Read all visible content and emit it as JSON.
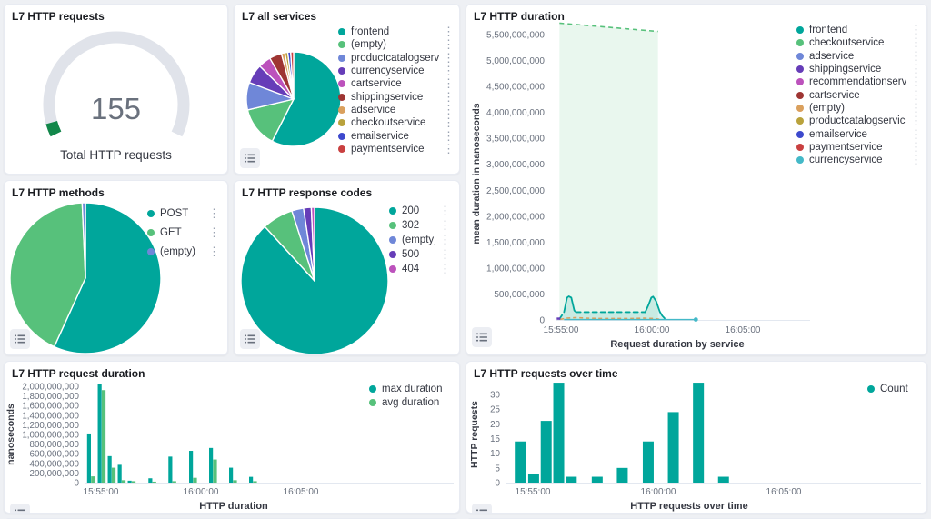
{
  "gauge": {
    "title": "L7 HTTP requests",
    "value": "155",
    "caption": "Total HTTP requests",
    "arc_color": "#12874a",
    "track_color": "#e0e3ea",
    "max_angle": 116,
    "value_sweep_deg": 10.5
  },
  "services_pie": {
    "title": "L7 all services",
    "slices": [
      {
        "label": "frontend",
        "color": "#00a69b",
        "percent": 57.5
      },
      {
        "label": "(empty)",
        "color": "#57c17b",
        "percent": 13.8
      },
      {
        "label": "productcatalogservice",
        "color": "#6f87d8",
        "percent": 9.4
      },
      {
        "label": "currencyservice",
        "color": "#663db8",
        "percent": 6.6
      },
      {
        "label": "cartservice",
        "color": "#bc52bc",
        "percent": 4.3
      },
      {
        "label": "shippingservice",
        "color": "#9e3533",
        "percent": 4.2
      },
      {
        "label": "adservice",
        "color": "#daa05d",
        "percent": 1.2
      },
      {
        "label": "checkoutservice",
        "color": "#b9a23c",
        "percent": 1.0
      },
      {
        "label": "emailservice",
        "color": "#3d49cd",
        "percent": 1.0
      },
      {
        "label": "paymentservice",
        "color": "#c94040",
        "percent": 1.0
      }
    ]
  },
  "methods_pie": {
    "title": "L7 HTTP methods",
    "slices": [
      {
        "label": "POST",
        "color": "#00a69b",
        "percent": 56.8
      },
      {
        "label": "GET",
        "color": "#57c17b",
        "percent": 42.5
      },
      {
        "label": "(empty)",
        "color": "#6f87d8",
        "percent": 0.7
      }
    ]
  },
  "codes_pie": {
    "title": "L7 HTTP response codes",
    "slices": [
      {
        "label": "200",
        "color": "#00a69b",
        "percent": 88.2
      },
      {
        "label": "302",
        "color": "#57c17b",
        "percent": 6.8
      },
      {
        "label": "(empty)",
        "color": "#6f87d8",
        "percent": 2.6
      },
      {
        "label": "500",
        "color": "#663db8",
        "percent": 1.7
      },
      {
        "label": "404",
        "color": "#bc52bc",
        "percent": 0.7
      }
    ]
  },
  "duration_chart": {
    "title": "L7 HTTP duration",
    "type": "line-area",
    "y_title": "mean duration in nanoseconds",
    "x_title": "Request duration by service",
    "y_ticks": [
      "0",
      "500,000,000",
      "1,000,000,000",
      "1,500,000,000",
      "2,000,000,000",
      "2,500,000,000",
      "3,000,000,000",
      "3,500,000,000",
      "4,000,000,000",
      "4,500,000,000",
      "5,000,000,000",
      "5,500,000,000"
    ],
    "y_tick_step": 500000000,
    "ylim": [
      0,
      5750000000
    ],
    "x_ticks": [
      "15:55:00",
      "16:00:00",
      "16:05:00"
    ],
    "legend": [
      {
        "label": "frontend",
        "color": "#00a69b"
      },
      {
        "label": "checkoutservice",
        "color": "#57c17b"
      },
      {
        "label": "adservice",
        "color": "#6f87d8"
      },
      {
        "label": "shippingservice",
        "color": "#663db8"
      },
      {
        "label": "recommendationservice",
        "color": "#bc52bc"
      },
      {
        "label": "cartservice",
        "color": "#9e3533"
      },
      {
        "label": "(empty)",
        "color": "#daa05d"
      },
      {
        "label": "productcatalogservice",
        "color": "#b9a23c"
      },
      {
        "label": "emailservice",
        "color": "#3d49cd"
      },
      {
        "label": "paymentservice",
        "color": "#c94040"
      },
      {
        "label": "currencyservice",
        "color": "#44b9c8"
      }
    ],
    "area_series": {
      "name": "checkoutservice",
      "color": "#57c17b",
      "points": [
        [
          55,
          5720000000
        ],
        [
          380,
          5560000000
        ]
      ]
    },
    "frontend_series": {
      "name": "frontend",
      "color": "#00a69b",
      "segments": [
        {
          "dash": true,
          "points": [
            [
              55,
              20000000
            ],
            [
              70,
              150000000
            ]
          ]
        },
        {
          "dash": false,
          "points": [
            [
              70,
              150000000
            ],
            [
              80,
              430000000
            ],
            [
              86,
              455000000
            ],
            [
              94,
              430000000
            ],
            [
              104,
              180000000
            ],
            [
              110,
              150000000
            ]
          ]
        },
        {
          "dash": true,
          "points": [
            [
              110,
              150000000
            ],
            [
              338,
              150000000
            ]
          ]
        },
        {
          "dash": false,
          "points": [
            [
              338,
              150000000
            ],
            [
              348,
              280000000
            ],
            [
              358,
              430000000
            ],
            [
              364,
              450000000
            ],
            [
              374,
              360000000
            ],
            [
              386,
              160000000
            ],
            [
              394,
              80000000
            ],
            [
              402,
              30000000
            ]
          ]
        }
      ]
    },
    "orange_series": {
      "name": "(empty)",
      "color": "#daa05d",
      "points": [
        [
          58,
          12000000
        ],
        [
          80,
          35000000
        ],
        [
          110,
          45000000
        ],
        [
          140,
          35000000
        ],
        [
          180,
          28000000
        ],
        [
          240,
          28000000
        ],
        [
          300,
          28000000
        ],
        [
          335,
          35000000
        ],
        [
          370,
          25000000
        ],
        [
          385,
          12000000
        ]
      ]
    },
    "purple_tick": {
      "name": "shippingservice",
      "color": "#663db8",
      "points": [
        [
          46,
          25000000
        ],
        [
          58,
          25000000
        ]
      ]
    },
    "cyan_series": {
      "name": "currencyservice",
      "color": "#44b9c8",
      "points": [
        [
          70,
          8000000
        ],
        [
          505,
          8000000
        ]
      ]
    }
  },
  "reqdur_chart": {
    "title": "L7 HTTP request duration",
    "type": "bar",
    "y_title": "nanoseconds",
    "x_title": "HTTP duration",
    "y_ticks": [
      "0",
      "200,000,000",
      "400,000,000",
      "600,000,000",
      "800,000,000",
      "1,000,000,000",
      "1,200,000,000",
      "1,400,000,000",
      "1,600,000,000",
      "1,800,000,000",
      "2,000,000,000"
    ],
    "y_tick_step": 200000000,
    "ylim": [
      0,
      2100000000
    ],
    "x_ticks": [
      "15:55:00",
      "16:00:00",
      "16:05:00"
    ],
    "legend": [
      {
        "label": "max duration",
        "color": "#00a69b"
      },
      {
        "label": "avg duration",
        "color": "#57c17b"
      }
    ],
    "times": [
      30,
      62,
      92,
      122,
      152,
      214,
      274,
      336,
      396,
      456,
      516
    ],
    "series": [
      {
        "name": "max duration",
        "color": "#00a69b",
        "values": [
          1020000000,
          2050000000,
          550000000,
          370000000,
          40000000,
          90000000,
          540000000,
          660000000,
          720000000,
          310000000,
          120000000
        ]
      },
      {
        "name": "avg duration",
        "color": "#57c17b",
        "values": [
          130000000,
          1920000000,
          310000000,
          50000000,
          30000000,
          20000000,
          30000000,
          100000000,
          480000000,
          50000000,
          30000000
        ]
      }
    ]
  },
  "count_chart": {
    "title": "L7 HTTP requests over time",
    "type": "bar",
    "y_title": "HTTP requests",
    "x_title": "HTTP requests over time",
    "y_ticks": [
      "0",
      "5",
      "10",
      "15",
      "20",
      "25",
      "30"
    ],
    "y_tick_step": 5,
    "ylim": [
      0,
      34
    ],
    "x_ticks": [
      "15:55:00",
      "16:00:00",
      "16:05:00"
    ],
    "legend": [
      {
        "label": "Count",
        "color": "#00a69b"
      }
    ],
    "times": [
      30,
      62,
      92,
      122,
      152,
      214,
      274,
      336,
      396,
      456,
      516
    ],
    "values": [
      14,
      3,
      21,
      34,
      2,
      2,
      5,
      14,
      24,
      34,
      2
    ]
  }
}
